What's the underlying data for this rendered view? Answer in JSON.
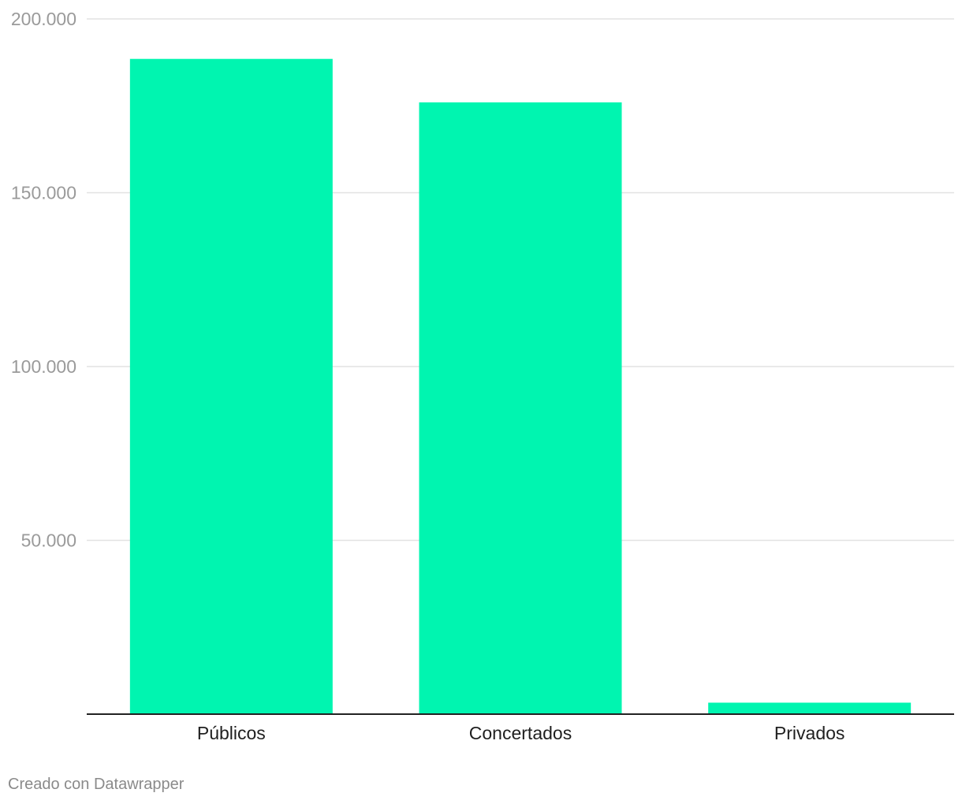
{
  "chart_data": {
    "type": "bar",
    "categories": [
      "Públicos",
      "Concertados",
      "Privados"
    ],
    "values": [
      188500,
      176000,
      3300
    ],
    "ylim": [
      0,
      200000
    ],
    "yticks": [
      50000,
      100000,
      150000,
      200000
    ],
    "ytick_labels": [
      "50.000",
      "100.000",
      "150.000",
      "200.000"
    ],
    "grid": true,
    "bar_color": "#00f5b0"
  },
  "footer": {
    "credit": "Creado con Datawrapper"
  }
}
